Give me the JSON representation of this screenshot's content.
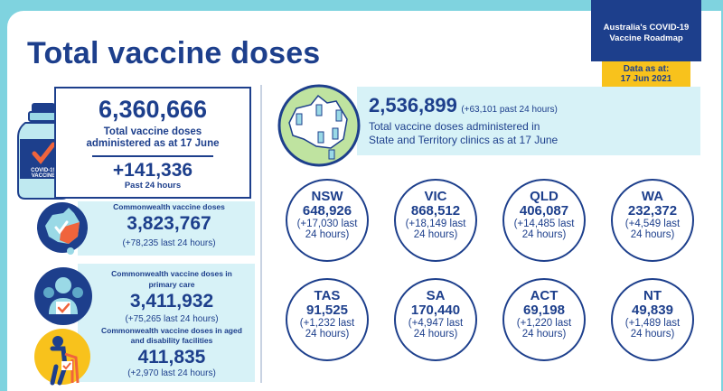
{
  "header": {
    "title": "Total vaccine doses",
    "roadmap_label": "Australia's COVID-19 Vaccine Roadmap",
    "data_as_at_label": "Data as at:",
    "data_as_at_date": "17 Jun 2021"
  },
  "total": {
    "value": "6,360,666",
    "desc": "Total vaccine doses administered as at 17 June",
    "change": "+141,336",
    "change_label": "Past 24 hours",
    "vial_text": "COVID-19 VACCINE"
  },
  "commonwealth": {
    "label": "Commonwealth vaccine doses",
    "value": "3,823,767",
    "change": "(+78,235 last 24 hours)"
  },
  "primary_care": {
    "label": "Commonwealth vaccine doses in primary care",
    "value": "3,411,932",
    "change": "(+75,265 last 24 hours)"
  },
  "aged_care": {
    "label": "Commonwealth vaccine doses in aged and disability facilities",
    "value": "411,835",
    "change": "(+2,970 last 24 hours)"
  },
  "state_clinics": {
    "value": "2,536,899",
    "change": "(+63,101 past 24 hours)",
    "desc_line1": "Total vaccine doses administered in",
    "desc_line2": "State and Territory clinics as at 17 June"
  },
  "states": [
    {
      "name": "NSW",
      "value": "648,926",
      "change1": "(+17,030 last",
      "change2": "24 hours)"
    },
    {
      "name": "VIC",
      "value": "868,512",
      "change1": "(+18,149 last",
      "change2": "24 hours)"
    },
    {
      "name": "QLD",
      "value": "406,087",
      "change1": "(+14,485 last",
      "change2": "24 hours)"
    },
    {
      "name": "WA",
      "value": "232,372",
      "change1": "(+4,549 last",
      "change2": "24 hours)"
    },
    {
      "name": "TAS",
      "value": "91,525",
      "change1": "(+1,232 last",
      "change2": "24 hours)"
    },
    {
      "name": "SA",
      "value": "170,440",
      "change1": "(+4,947 last",
      "change2": "24 hours)"
    },
    {
      "name": "ACT",
      "value": "69,198",
      "change1": "(+1,220 last",
      "change2": "24 hours)"
    },
    {
      "name": "NT",
      "value": "49,839",
      "change1": "(+1,489 last",
      "change2": "24 hours)"
    }
  ],
  "colors": {
    "navy": "#1d3f8c",
    "teal_background": "#7fd3df",
    "light_panel": "#d7f2f7",
    "yellow": "#f8c21c",
    "orange": "#f0643c"
  }
}
